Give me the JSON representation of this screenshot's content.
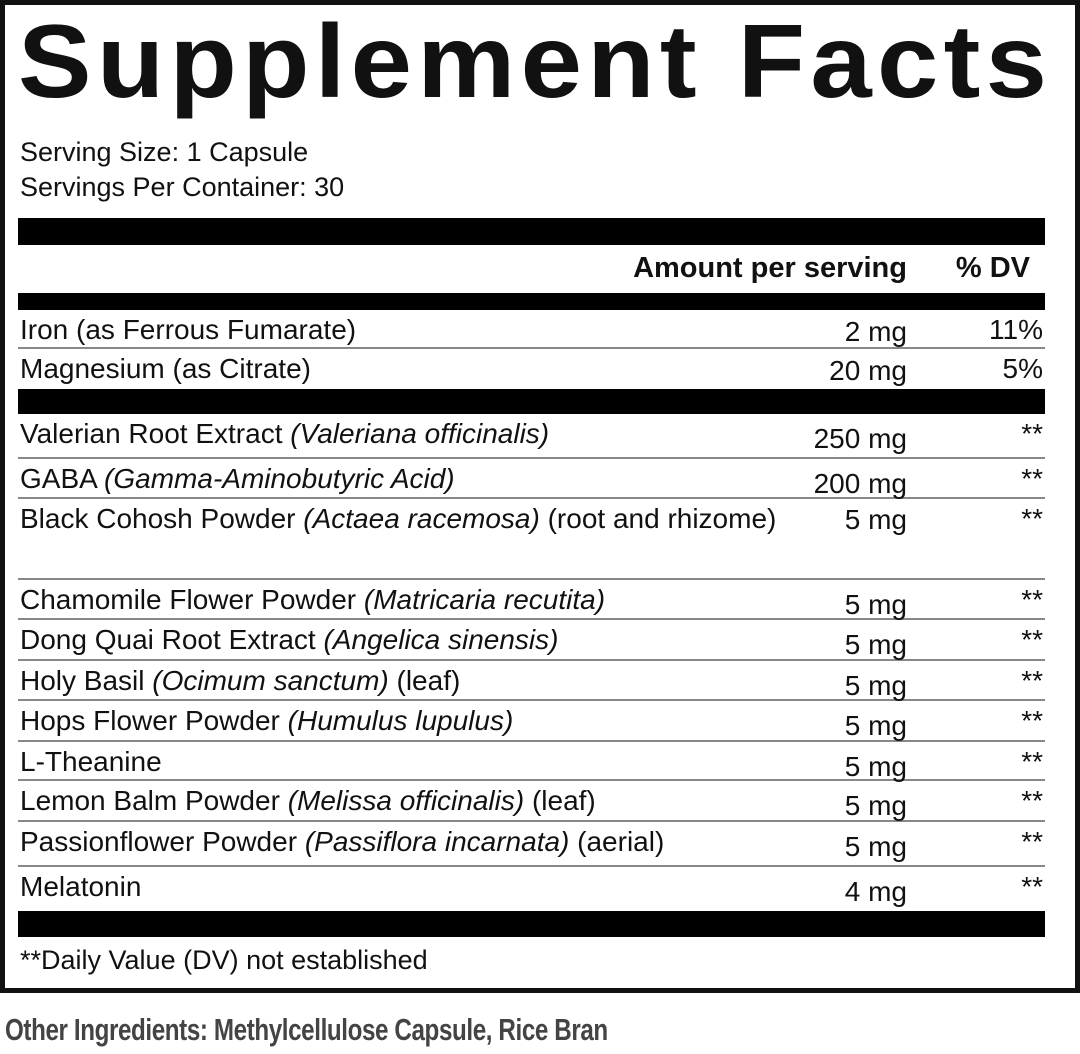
{
  "title": "Supplement Facts",
  "serving_size": "Serving Size: 1 Capsule",
  "servings_per_container": "Servings Per Container: 30",
  "header": {
    "amount": "Amount per serving",
    "dv": "% DV"
  },
  "vitamins": [
    {
      "name": "Iron (as Ferrous Fumarate)",
      "amount": "2 mg",
      "dv": "11%"
    },
    {
      "name": "Magnesium (as Citrate)",
      "amount": "20 mg",
      "dv": "5%"
    }
  ],
  "ingredients": [
    {
      "name": "Valerian Root Extract ",
      "latin": "(Valeriana officinalis)",
      "suffix": "",
      "amount": "250 mg",
      "dv": "**"
    },
    {
      "name": "GABA ",
      "latin": "(Gamma-Aminobutyric Acid)",
      "suffix": "",
      "amount": "200 mg",
      "dv": "**"
    },
    {
      "name": "Black Cohosh Powder ",
      "latin": "(Actaea racemosa)",
      "suffix": " (root and rhizome)",
      "amount": "5 mg",
      "dv": "**"
    },
    {
      "name": "Chamomile Flower Powder ",
      "latin": "(Matricaria recutita)",
      "suffix": "",
      "amount": "5 mg",
      "dv": "**"
    },
    {
      "name": "Dong Quai Root Extract ",
      "latin": "(Angelica sinensis)",
      "suffix": "",
      "amount": "5 mg",
      "dv": "**"
    },
    {
      "name": "Holy Basil ",
      "latin": "(Ocimum sanctum)",
      "suffix": " (leaf)",
      "amount": "5 mg",
      "dv": "**"
    },
    {
      "name": "Hops Flower Powder ",
      "latin": "(Humulus lupulus)",
      "suffix": "",
      "amount": "5 mg",
      "dv": "**"
    },
    {
      "name": "L-Theanine",
      "latin": "",
      "suffix": "",
      "amount": "5 mg",
      "dv": "**"
    },
    {
      "name": "Lemon Balm Powder ",
      "latin": "(Melissa officinalis)",
      "suffix": " (leaf)",
      "amount": "5 mg",
      "dv": "**"
    },
    {
      "name": "Passionflower Powder ",
      "latin": "(Passiflora incarnata)",
      "suffix": " (aerial)",
      "amount": "5 mg",
      "dv": "**"
    },
    {
      "name": "Melatonin",
      "latin": "",
      "suffix": "",
      "amount": "4 mg",
      "dv": "**"
    }
  ],
  "footnote": "**Daily Value (DV) not established",
  "other_ingredients": "Other Ingredients: Methylcellulose Capsule, Rice Bran"
}
